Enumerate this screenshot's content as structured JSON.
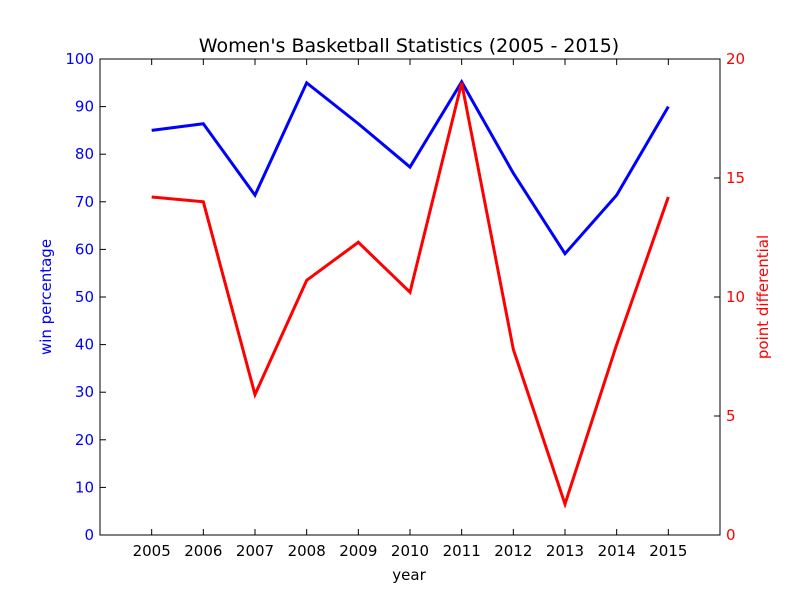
{
  "chart_data": {
    "type": "line",
    "title": "Women's Basketball Statistics (2005 - 2015)",
    "xlabel": "year",
    "x": [
      2005,
      2006,
      2007,
      2008,
      2009,
      2010,
      2011,
      2012,
      2013,
      2014,
      2015
    ],
    "xlim": [
      2004,
      2016
    ],
    "y_left": {
      "label": "win percentage",
      "color": "#0000ff",
      "ylim": [
        0,
        100
      ],
      "ticks": [
        0,
        10,
        20,
        30,
        40,
        50,
        60,
        70,
        80,
        90,
        100
      ]
    },
    "y_right": {
      "label": "point differential",
      "color": "#ff0000",
      "ylim": [
        0,
        20
      ],
      "ticks": [
        0,
        5,
        10,
        15,
        20
      ]
    },
    "series": [
      {
        "axis": "left",
        "color": "#0000ff",
        "values": [
          85.0,
          86.4,
          71.4,
          95.0,
          86.4,
          77.3,
          95.2,
          76.0,
          59.1,
          71.4,
          90.0
        ]
      },
      {
        "axis": "right",
        "color": "#ff0000",
        "values": [
          14.2,
          14.0,
          5.9,
          10.7,
          12.3,
          10.2,
          19.0,
          7.8,
          1.3,
          8.0,
          14.2
        ]
      }
    ],
    "grid": false
  }
}
